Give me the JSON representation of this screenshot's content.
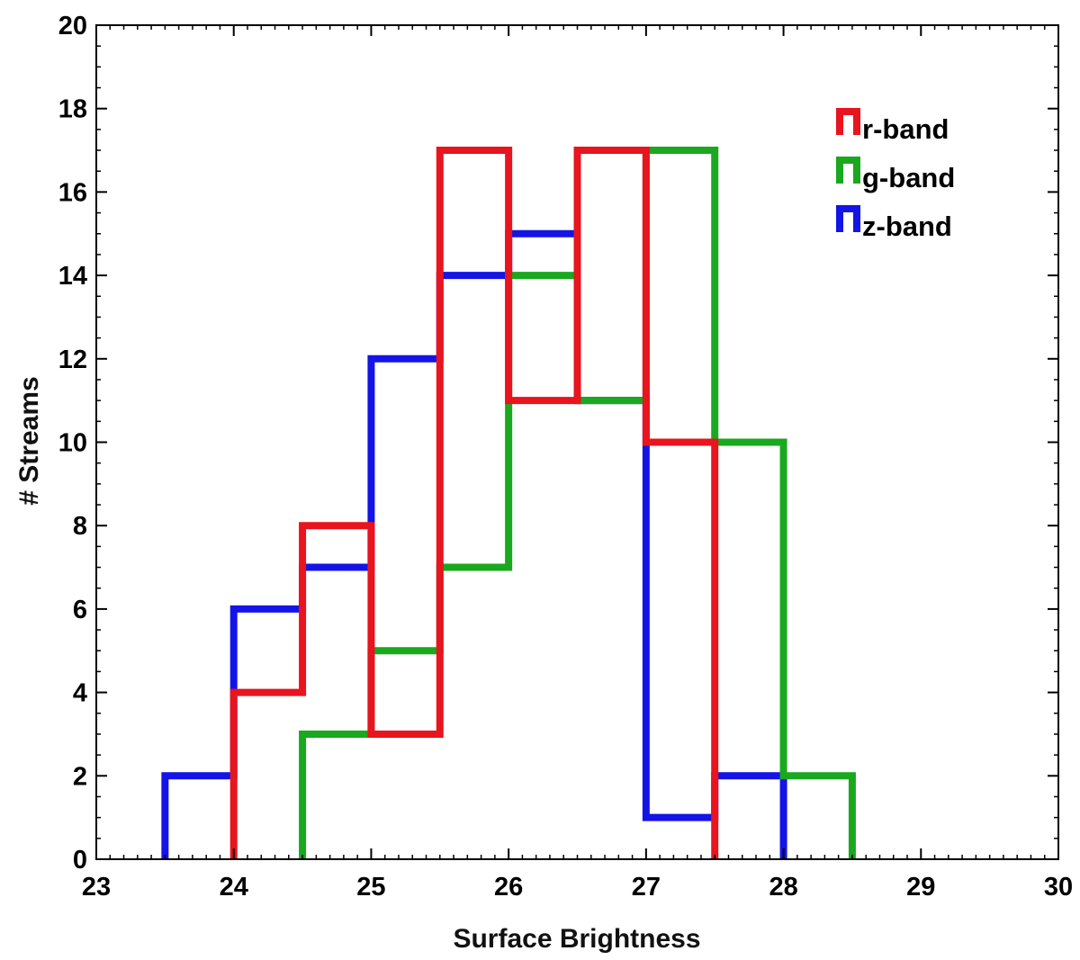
{
  "chart_data": {
    "type": "histogram",
    "xlabel": "Surface Brightness",
    "ylabel": "# Streams",
    "xlim": [
      23,
      30
    ],
    "ylim": [
      0,
      20
    ],
    "x_ticks": [
      "23",
      "24",
      "25",
      "26",
      "27",
      "28",
      "29",
      "30"
    ],
    "y_ticks": [
      "0",
      "2",
      "4",
      "6",
      "8",
      "10",
      "12",
      "14",
      "16",
      "18",
      "20"
    ],
    "bin_width": 0.5,
    "grid": false,
    "legend_position": "top-right",
    "series": [
      {
        "name": "r-band",
        "color": "#e8141e",
        "bins": [
          24.0,
          24.5,
          25.0,
          25.5,
          26.0,
          26.5,
          27.0,
          27.5
        ],
        "counts": [
          4,
          8,
          3,
          17,
          11,
          17,
          10
        ]
      },
      {
        "name": "g-band",
        "color": "#19a81e",
        "bins": [
          24.5,
          25.0,
          25.5,
          26.0,
          26.5,
          27.0,
          27.5,
          28.0,
          28.5
        ],
        "counts": [
          3,
          5,
          7,
          14,
          11,
          17,
          10,
          2
        ]
      },
      {
        "name": "z-band",
        "color": "#1414e6",
        "bins": [
          23.5,
          24.0,
          24.5,
          25.0,
          25.5,
          26.0,
          26.5,
          27.0,
          27.5,
          28.0
        ],
        "counts": [
          2,
          6,
          7,
          12,
          14,
          15,
          11,
          1,
          2
        ]
      }
    ]
  }
}
